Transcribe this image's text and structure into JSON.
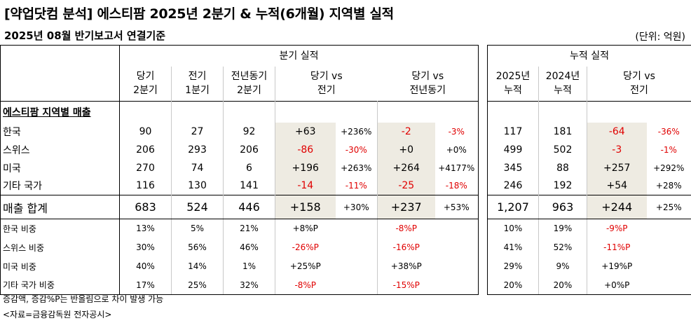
{
  "title": "[약업닷컴 분석] 에스티팜 2025년 2분기 & 누적(6개월) 지역별 실적",
  "subtitle": "2025년 08월 반기보고서 연결기준",
  "unit": "(단위: 억원)",
  "quarterly": {
    "group_header": "분기 실적",
    "col_headers": [
      {
        "l1": "당기",
        "l2": "2분기"
      },
      {
        "l1": "전기",
        "l2": "1분기"
      },
      {
        "l1": "전년동기",
        "l2": "2분기"
      },
      {
        "l1": "당기 vs",
        "l2": "전기"
      },
      {
        "l1": "당기 vs",
        "l2": "전년동기"
      }
    ]
  },
  "cumulative": {
    "group_header": "누적 실적",
    "col_headers": [
      {
        "l1": "2025년",
        "l2": "누적"
      },
      {
        "l1": "2024년",
        "l2": "누적"
      },
      {
        "l1": "당기 vs",
        "l2": "전기"
      }
    ]
  },
  "section_label": "에스티팜 지역별 매출",
  "rows": [
    {
      "label": "한국",
      "q_cur": "90",
      "q_prev": "27",
      "q_yoy": "92",
      "d_qoq": "+63",
      "p_qoq": "+236%",
      "d_yoy": "-2",
      "p_yoy": "-3%",
      "c_2025": "117",
      "c_2024": "181",
      "d_cum": "-64",
      "p_cum": "-36%"
    },
    {
      "label": "스위스",
      "q_cur": "206",
      "q_prev": "293",
      "q_yoy": "206",
      "d_qoq": "-86",
      "p_qoq": "-30%",
      "d_yoy": "+0",
      "p_yoy": "+0%",
      "c_2025": "499",
      "c_2024": "502",
      "d_cum": "-3",
      "p_cum": "-1%"
    },
    {
      "label": "미국",
      "q_cur": "270",
      "q_prev": "74",
      "q_yoy": "6",
      "d_qoq": "+196",
      "p_qoq": "+263%",
      "d_yoy": "+264",
      "p_yoy": "+4177%",
      "c_2025": "345",
      "c_2024": "88",
      "d_cum": "+257",
      "p_cum": "+292%"
    },
    {
      "label": "기타 국가",
      "q_cur": "116",
      "q_prev": "130",
      "q_yoy": "141",
      "d_qoq": "-14",
      "p_qoq": "-11%",
      "d_yoy": "-25",
      "p_yoy": "-18%",
      "c_2025": "246",
      "c_2024": "192",
      "d_cum": "+54",
      "p_cum": "+28%"
    }
  ],
  "total": {
    "label": "매출 합계",
    "q_cur": "683",
    "q_prev": "524",
    "q_yoy": "446",
    "d_qoq": "+158",
    "p_qoq": "+30%",
    "d_yoy": "+237",
    "p_yoy": "+53%",
    "c_2025": "1,207",
    "c_2024": "963",
    "d_cum": "+244",
    "p_cum": "+25%"
  },
  "shares": [
    {
      "label": "한국 비중",
      "q_cur": "13%",
      "q_prev": "5%",
      "q_yoy": "21%",
      "d_qoq": "+8%P",
      "d_yoy": "-8%P",
      "c_2025": "10%",
      "c_2024": "19%",
      "d_cum": "-9%P"
    },
    {
      "label": "스위스 비중",
      "q_cur": "30%",
      "q_prev": "56%",
      "q_yoy": "46%",
      "d_qoq": "-26%P",
      "d_yoy": "-16%P",
      "c_2025": "41%",
      "c_2024": "52%",
      "d_cum": "-11%P"
    },
    {
      "label": "미국 비중",
      "q_cur": "40%",
      "q_prev": "14%",
      "q_yoy": "1%",
      "d_qoq": "+25%P",
      "d_yoy": "+38%P",
      "c_2025": "29%",
      "c_2024": "9%",
      "d_cum": "+19%P"
    },
    {
      "label": "기타 국가 비중",
      "q_cur": "17%",
      "q_prev": "25%",
      "q_yoy": "32%",
      "d_qoq": "-8%P",
      "d_yoy": "-15%P",
      "c_2025": "20%",
      "c_2024": "20%",
      "d_cum": "+0%P"
    }
  ],
  "footnote": "증감액, 증감%P는 반올림으로 차이 발생 가능",
  "source": "<자료=금융감독원 전자공시>",
  "colors": {
    "negative": "#e00000",
    "positive": "#000000",
    "highlight": "#eeebe2",
    "grid": "#c8c8c8"
  }
}
